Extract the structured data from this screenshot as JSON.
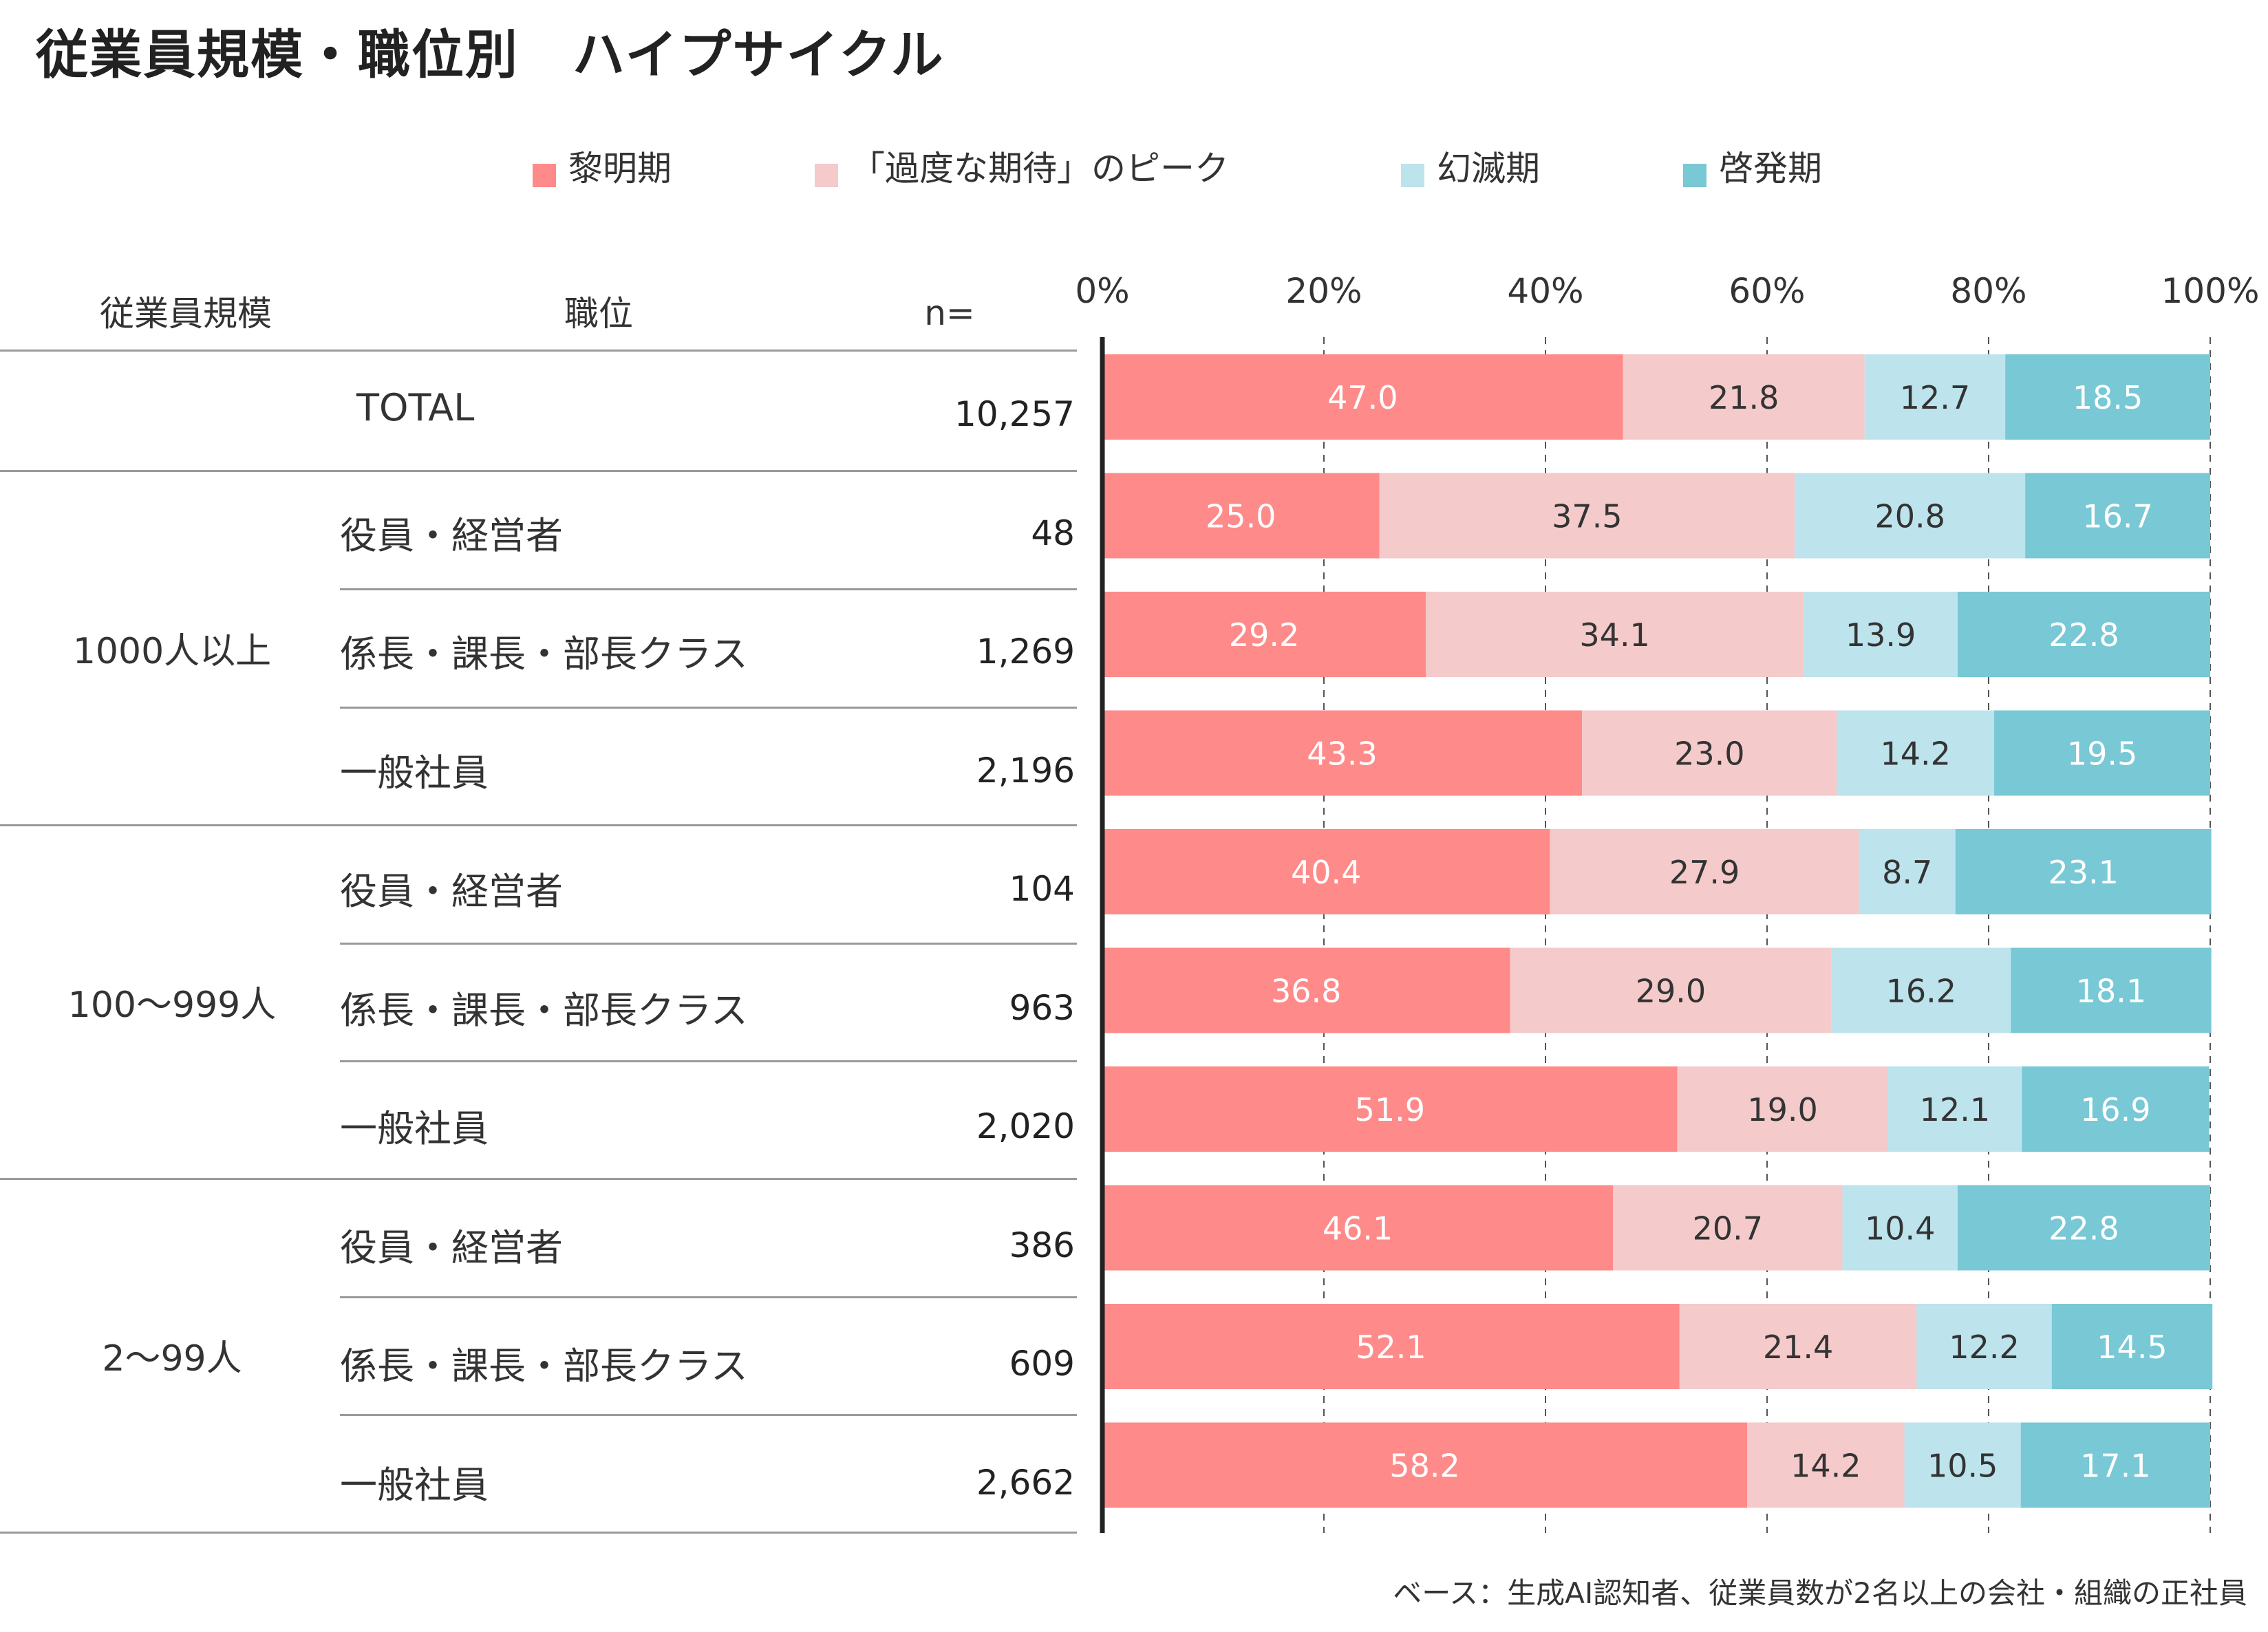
{
  "title": "従業員規模・職位別　ハイプサイクル",
  "legend": [
    {
      "label": "黎明期",
      "color": "#FF8A8A"
    },
    {
      "label": "「過度な期待」のピーク",
      "color": "#F4CACA"
    },
    {
      "label": "幻滅期",
      "color": "#BDE3EC"
    },
    {
      "label": "啓発期",
      "color": "#78C8D6"
    }
  ],
  "table_header": {
    "size": "従業員規模",
    "position": "職位",
    "n": "n="
  },
  "groups": [
    {
      "label": ""
    },
    {
      "label": "1000人以上"
    },
    {
      "label": "100～999人"
    },
    {
      "label": "2～99人"
    }
  ],
  "rows": [
    {
      "position": "TOTAL",
      "n": "10,257"
    },
    {
      "position": "役員・経営者",
      "n": "48"
    },
    {
      "position": "係長・課長・部長クラス",
      "n": "1,269"
    },
    {
      "position": "一般社員",
      "n": "2,196"
    },
    {
      "position": "役員・経営者",
      "n": "104"
    },
    {
      "position": "係長・課長・部長クラス",
      "n": "963"
    },
    {
      "position": "一般社員",
      "n": "2,020"
    },
    {
      "position": "役員・経営者",
      "n": "386"
    },
    {
      "position": "係長・課長・部長クラス",
      "n": "609"
    },
    {
      "position": "一般社員",
      "n": "2,662"
    }
  ],
  "footnote": "ベース：生成AI認知者、従業員数が2名以上の会社・組織の正社員",
  "chart_data": {
    "type": "bar",
    "orientation": "horizontal",
    "stacked": "percent",
    "categories": [
      "TOTAL",
      "1000人以上 役員・経営者",
      "1000人以上 係長・課長・部長クラス",
      "1000人以上 一般社員",
      "100～999人 役員・経営者",
      "100～999人 係長・課長・部長クラス",
      "100～999人 一般社員",
      "2～99人 役員・経営者",
      "2～99人 係長・課長・部長クラス",
      "2～99人 一般社員"
    ],
    "series": [
      {
        "name": "黎明期",
        "color": "#FF8A8A",
        "label_color": "#ffffff",
        "values": [
          47.0,
          25.0,
          29.2,
          43.3,
          40.4,
          36.8,
          51.9,
          46.1,
          52.1,
          58.2
        ]
      },
      {
        "name": "「過度な期待」のピーク",
        "color": "#F4CACA",
        "label_color": "#333333",
        "values": [
          21.8,
          37.5,
          34.1,
          23.0,
          27.9,
          29.0,
          19.0,
          20.7,
          21.4,
          14.2
        ]
      },
      {
        "name": "幻滅期",
        "color": "#BDE3EC",
        "label_color": "#333333",
        "values": [
          12.7,
          20.8,
          13.9,
          14.2,
          8.7,
          16.2,
          12.1,
          10.4,
          12.2,
          10.5
        ]
      },
      {
        "name": "啓発期",
        "color": "#78C8D6",
        "label_color": "#ffffff",
        "values": [
          18.5,
          16.7,
          22.8,
          19.5,
          23.1,
          18.1,
          16.9,
          22.8,
          14.5,
          17.1
        ]
      }
    ],
    "x_ticks": [
      "0%",
      "20%",
      "40%",
      "60%",
      "80%",
      "100%"
    ],
    "xlim": [
      0,
      100
    ],
    "grid": "dashed vertical",
    "legend_position": "top"
  }
}
